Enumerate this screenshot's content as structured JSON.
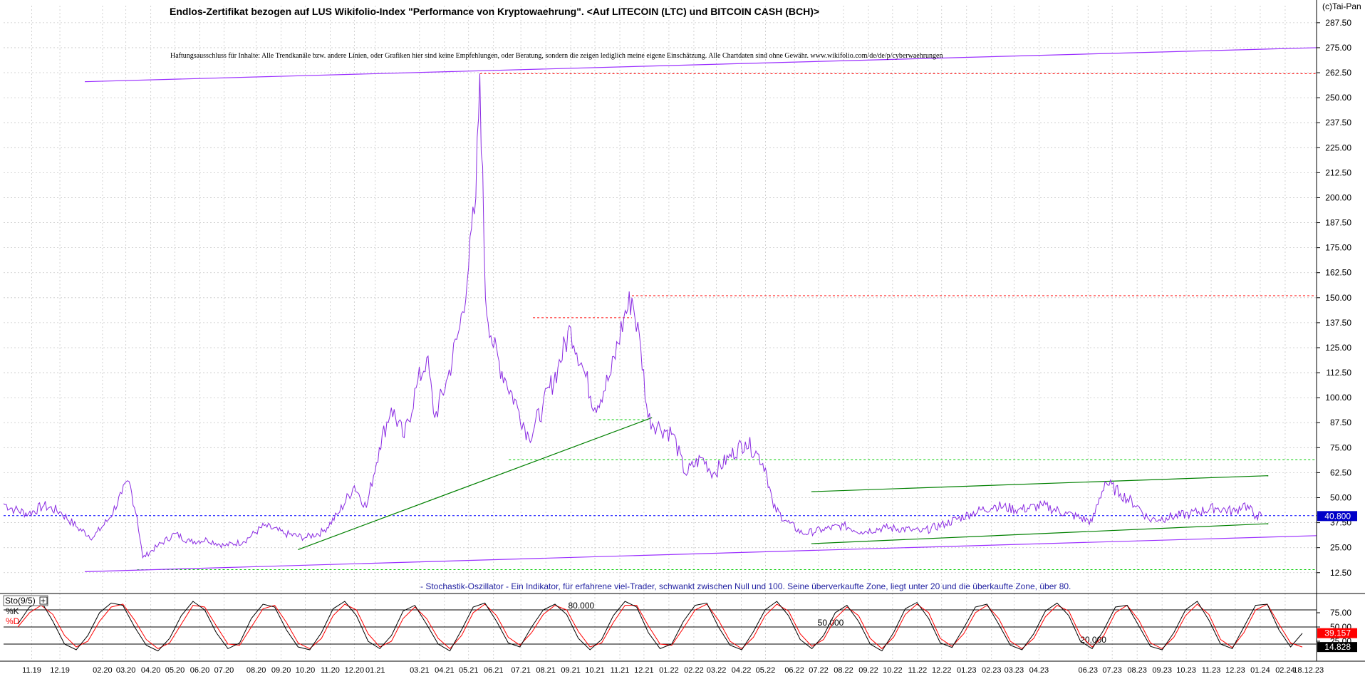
{
  "title": "Endlos-Zertifikat bezogen auf LUS Wikifolio-Index \"Performance von Kryptowaehrung\". <Auf LITECOIN (LTC) und BITCOIN CASH (BCH)>",
  "disclaimer": "Haftungsausschluss für Inhalte: Alle Trendkanäle bzw. andere Linien, oder Grafiken hier sind keine Empfehlungen, oder Beratung, sondern die zeigen lediglich meine eigene Einschätzung. Alle Chartdaten sind ohne Gewähr.  www.wikifolio.com/de/de/p/cyberwaehrungen",
  "copyright": "(c)Tai-Pan",
  "indicator_note": "- Stochastik-Oszillator - Ein Indikator, für erfahrene viel-Trader, schwankt zwischen Null und 100. Seine überverkaufte Zone, liegt unter 20 und die überkaufte Zone, über 80.",
  "sto_label": "Sto(9/5)",
  "sto_k_label": "%K",
  "sto_d_label": "%D",
  "colors": {
    "price": "#8a2be2",
    "trend_purple": "#9b30ff",
    "trend_green": "#008000",
    "dotted_red": "#ff0000",
    "dotted_green": "#00cc00",
    "dotted_blue": "#0000ff",
    "stoch_k": "#000000",
    "stoch_d": "#ff0000",
    "note_text": "#1f1fa0"
  },
  "chart_data": [
    {
      "type": "line",
      "title": "Endlos-Zertifikat bezogen auf LUS Wikifolio-Index \"Performance von Kryptowaehrung\". <Auf LITECOIN (LTC) und BITCOIN CASH (BCH)>",
      "ylim": [
        6,
        296
      ],
      "yticks": [
        "287.50",
        "275.00",
        "262.50",
        "250.00",
        "237.50",
        "225.00",
        "212.50",
        "200.00",
        "187.50",
        "175.00",
        "162.50",
        "150.00",
        "137.50",
        "125.00",
        "112.50",
        "100.00",
        "87.50",
        "75.00",
        "62.50",
        "50.00",
        "37.50",
        "25.00",
        "12.50"
      ],
      "last_value_label": "40.800",
      "last_value": 40.8,
      "x_tick_labels": [
        "11.19",
        "12.19",
        "02.20",
        "03.20",
        "04.20",
        "05.20",
        "06.20",
        "07.20",
        "08.20",
        "09.20",
        "10.20",
        "11.20",
        "12.20",
        "01.21",
        "03.21",
        "04.21",
        "05.21",
        "06.21",
        "07.21",
        "08.21",
        "09.21",
        "10.21",
        "11.21",
        "12.21",
        "01.22",
        "02.22",
        "03.22",
        "04.22",
        "05.22",
        "06.22",
        "07.22",
        "08.22",
        "09.22",
        "10.22",
        "11.22",
        "12.22",
        "01.23",
        "02.23",
        "03.23",
        "04.23",
        "06.23",
        "07.23",
        "08.23",
        "09.23",
        "10.23",
        "11.23",
        "12.23",
        "01.24",
        "02.24",
        "18.12.23"
      ],
      "x_start": "2019-10-01",
      "x_end": "2024-03-20",
      "grid": true,
      "series": [
        {
          "points": [
            [
              "2019-10-01",
              47
            ],
            [
              "2019-10-15",
              44
            ],
            [
              "2019-11-01",
              42
            ],
            [
              "2019-11-20",
              46
            ],
            [
              "2019-12-10",
              43
            ],
            [
              "2020-01-01",
              35
            ],
            [
              "2020-01-20",
              30
            ],
            [
              "2020-02-10",
              40
            ],
            [
              "2020-02-25",
              52
            ],
            [
              "2020-03-05",
              58
            ],
            [
              "2020-03-15",
              40
            ],
            [
              "2020-03-22",
              20
            ],
            [
              "2020-04-10",
              26
            ],
            [
              "2020-05-01",
              32
            ],
            [
              "2020-05-20",
              28
            ],
            [
              "2020-06-10",
              29
            ],
            [
              "2020-07-01",
              26
            ],
            [
              "2020-07-25",
              28
            ],
            [
              "2020-08-20",
              36
            ],
            [
              "2020-09-15",
              32
            ],
            [
              "2020-10-10",
              30
            ],
            [
              "2020-11-01",
              33
            ],
            [
              "2020-11-20",
              42
            ],
            [
              "2020-12-10",
              56
            ],
            [
              "2020-12-25",
              45
            ],
            [
              "2021-01-10",
              75
            ],
            [
              "2021-01-25",
              95
            ],
            [
              "2021-02-10",
              80
            ],
            [
              "2021-02-25",
              105
            ],
            [
              "2021-03-10",
              120
            ],
            [
              "2021-03-20",
              90
            ],
            [
              "2021-04-05",
              110
            ],
            [
              "2021-04-20",
              135
            ],
            [
              "2021-05-01",
              165
            ],
            [
              "2021-05-10",
              200
            ],
            [
              "2021-05-15",
              262
            ],
            [
              "2021-05-22",
              150
            ],
            [
              "2021-06-01",
              125
            ],
            [
              "2021-06-15",
              110
            ],
            [
              "2021-07-01",
              95
            ],
            [
              "2021-07-15",
              80
            ],
            [
              "2021-08-01",
              95
            ],
            [
              "2021-08-20",
              115
            ],
            [
              "2021-09-05",
              135
            ],
            [
              "2021-09-20",
              115
            ],
            [
              "2021-10-05",
              95
            ],
            [
              "2021-10-25",
              112
            ],
            [
              "2021-11-10",
              140
            ],
            [
              "2021-11-20",
              150
            ],
            [
              "2021-12-01",
              125
            ],
            [
              "2021-12-10",
              90
            ],
            [
              "2021-12-25",
              85
            ],
            [
              "2022-01-10",
              82
            ],
            [
              "2022-01-25",
              62
            ],
            [
              "2022-02-15",
              70
            ],
            [
              "2022-03-01",
              62
            ],
            [
              "2022-03-20",
              70
            ],
            [
              "2022-04-10",
              78
            ],
            [
              "2022-04-25",
              72
            ],
            [
              "2022-05-05",
              65
            ],
            [
              "2022-05-15",
              45
            ],
            [
              "2022-06-01",
              38
            ],
            [
              "2022-06-20",
              32
            ],
            [
              "2022-07-15",
              34
            ],
            [
              "2022-08-10",
              36
            ],
            [
              "2022-09-01",
              33
            ],
            [
              "2022-10-01",
              35
            ],
            [
              "2022-11-01",
              34
            ],
            [
              "2022-11-15",
              33
            ],
            [
              "2022-12-15",
              37
            ],
            [
              "2023-01-15",
              42
            ],
            [
              "2023-02-15",
              46
            ],
            [
              "2023-03-15",
              44
            ],
            [
              "2023-04-15",
              46
            ],
            [
              "2023-05-15",
              42
            ],
            [
              "2023-06-15",
              38
            ],
            [
              "2023-07-01",
              58
            ],
            [
              "2023-07-20",
              52
            ],
            [
              "2023-08-10",
              46
            ],
            [
              "2023-08-25",
              39
            ],
            [
              "2023-09-15",
              40
            ],
            [
              "2023-10-15",
              42
            ],
            [
              "2023-11-15",
              45
            ],
            [
              "2023-12-10",
              43
            ],
            [
              "2023-12-20",
              47
            ],
            [
              "2024-01-05",
              41
            ],
            [
              "2024-01-12",
              40.8
            ]
          ]
        }
      ]
    },
    {
      "type": "line",
      "title": "Sto(9/5)",
      "ylim": [
        0,
        100
      ],
      "yticks": [
        "75.00",
        "50.00",
        "25.00"
      ],
      "levels": [
        80,
        50,
        20
      ],
      "level_labels": [
        "80.000",
        "50.000",
        "20.000"
      ],
      "last_k_label": "39.157",
      "last_k": 39.157,
      "last_d_label": "14.828",
      "last_d": 14.828,
      "series": [
        {
          "name": "%K",
          "values": [
            55,
            85,
            95,
            60,
            20,
            10,
            35,
            75,
            92,
            88,
            50,
            18,
            8,
            30,
            70,
            95,
            80,
            40,
            12,
            22,
            65,
            90,
            85,
            45,
            15,
            10,
            40,
            82,
            95,
            70,
            25,
            12,
            35,
            78,
            88,
            55,
            20,
            8,
            45,
            85,
            92,
            60,
            22,
            15,
            50,
            80,
            90,
            72,
            30,
            10,
            28,
            70,
            95,
            85,
            40,
            12,
            20,
            60,
            88,
            92,
            50,
            18,
            10,
            42,
            80,
            95,
            70,
            28,
            12,
            35,
            75,
            88,
            60,
            20,
            8,
            40,
            82,
            93,
            65,
            22,
            14,
            48,
            85,
            90,
            55,
            18,
            10,
            38,
            78,
            92,
            70,
            25,
            12,
            45,
            85,
            88,
            52,
            16,
            10,
            40,
            80,
            95,
            62,
            20,
            12,
            50,
            88,
            90,
            45,
            15,
            39
          ]
        },
        {
          "name": "%D",
          "values": [
            50,
            75,
            88,
            72,
            35,
            15,
            25,
            60,
            85,
            90,
            62,
            28,
            12,
            22,
            55,
            88,
            85,
            52,
            20,
            18,
            50,
            82,
            88,
            58,
            22,
            12,
            30,
            70,
            90,
            80,
            38,
            15,
            25,
            65,
            85,
            65,
            30,
            12,
            35,
            75,
            90,
            70,
            32,
            18,
            40,
            72,
            88,
            80,
            42,
            15,
            22,
            58,
            88,
            88,
            52,
            20,
            18,
            48,
            80,
            90,
            62,
            25,
            12,
            32,
            70,
            90,
            78,
            38,
            16,
            28,
            65,
            85,
            70,
            30,
            12,
            32,
            72,
            90,
            75,
            30,
            16,
            38,
            75,
            88,
            65,
            25,
            12,
            30,
            68,
            88,
            78,
            35,
            15,
            35,
            75,
            88,
            62,
            22,
            12,
            32,
            70,
            90,
            72,
            28,
            14,
            40,
            80,
            90,
            55,
            22,
            14.828
          ]
        }
      ]
    }
  ]
}
